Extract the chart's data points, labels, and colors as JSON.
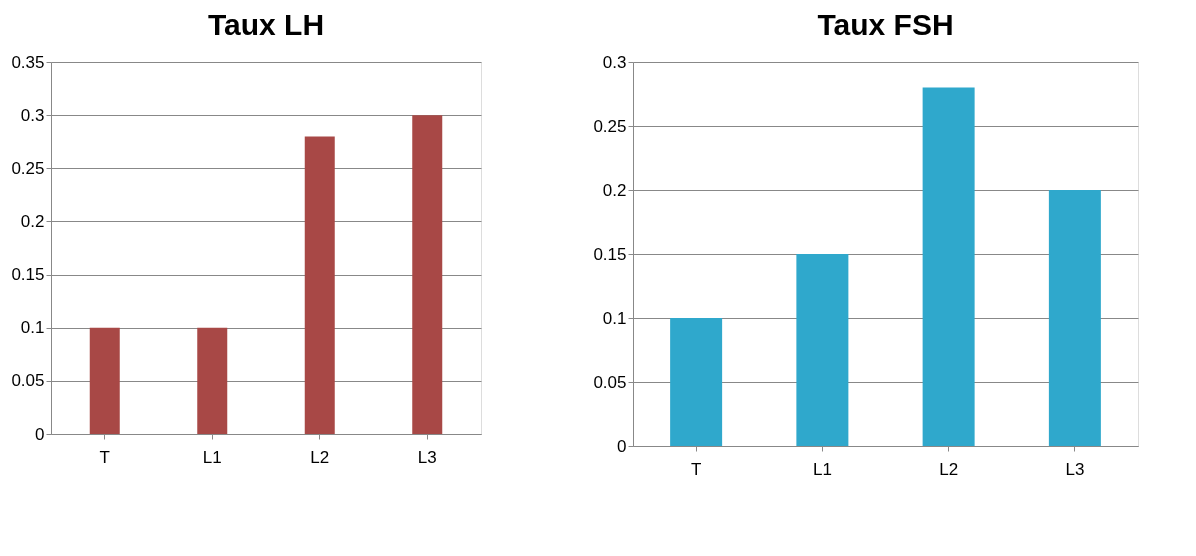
{
  "chart_data": [
    {
      "type": "bar",
      "title": "Taux LH",
      "categories": [
        "T",
        "L1",
        "L2",
        "L3"
      ],
      "values": [
        0.1,
        0.1,
        0.28,
        0.3
      ],
      "color": "#a84846",
      "ylim": [
        0,
        0.35
      ],
      "yticks": [
        0,
        0.05,
        0.1,
        0.15,
        0.2,
        0.25,
        0.3,
        0.35
      ],
      "grid": "y"
    },
    {
      "type": "bar",
      "title": "Taux FSH",
      "categories": [
        "T",
        "L1",
        "L2",
        "L3"
      ],
      "values": [
        0.1,
        0.15,
        0.28,
        0.2
      ],
      "color": "#2fa8cc",
      "ylim": [
        0,
        0.3
      ],
      "yticks": [
        0,
        0.05,
        0.1,
        0.15,
        0.2,
        0.25,
        0.3
      ],
      "grid": "y"
    }
  ]
}
